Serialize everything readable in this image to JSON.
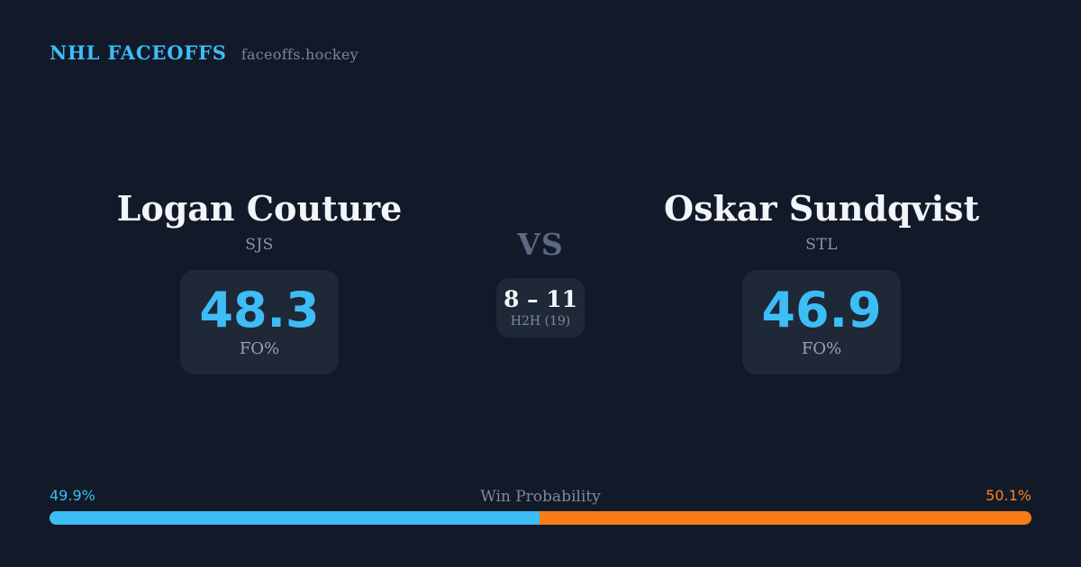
{
  "header": {
    "brand": "NHL FACEOFFS",
    "site": "faceoffs.hockey"
  },
  "matchup": {
    "player_left": {
      "name": "Logan Couture",
      "team": "SJS",
      "stat_value": "48.3",
      "stat_label": "FO%"
    },
    "player_right": {
      "name": "Oskar Sundqvist",
      "team": "STL",
      "stat_value": "46.9",
      "stat_label": "FO%"
    },
    "vs_label": "VS",
    "h2h": {
      "record": "8 – 11",
      "label": "H2H (19)"
    }
  },
  "win_probability": {
    "title": "Win Probability",
    "left_pct_label": "49.9%",
    "right_pct_label": "50.1%",
    "left_value": 49.9,
    "right_value": 50.1
  },
  "colors": {
    "background": "#121a29",
    "panel": "#1e2837",
    "accent_blue": "#3dbdf6",
    "accent_orange": "#f97c17",
    "text_primary": "#f2f5f9",
    "text_muted": "#8b96a8"
  }
}
